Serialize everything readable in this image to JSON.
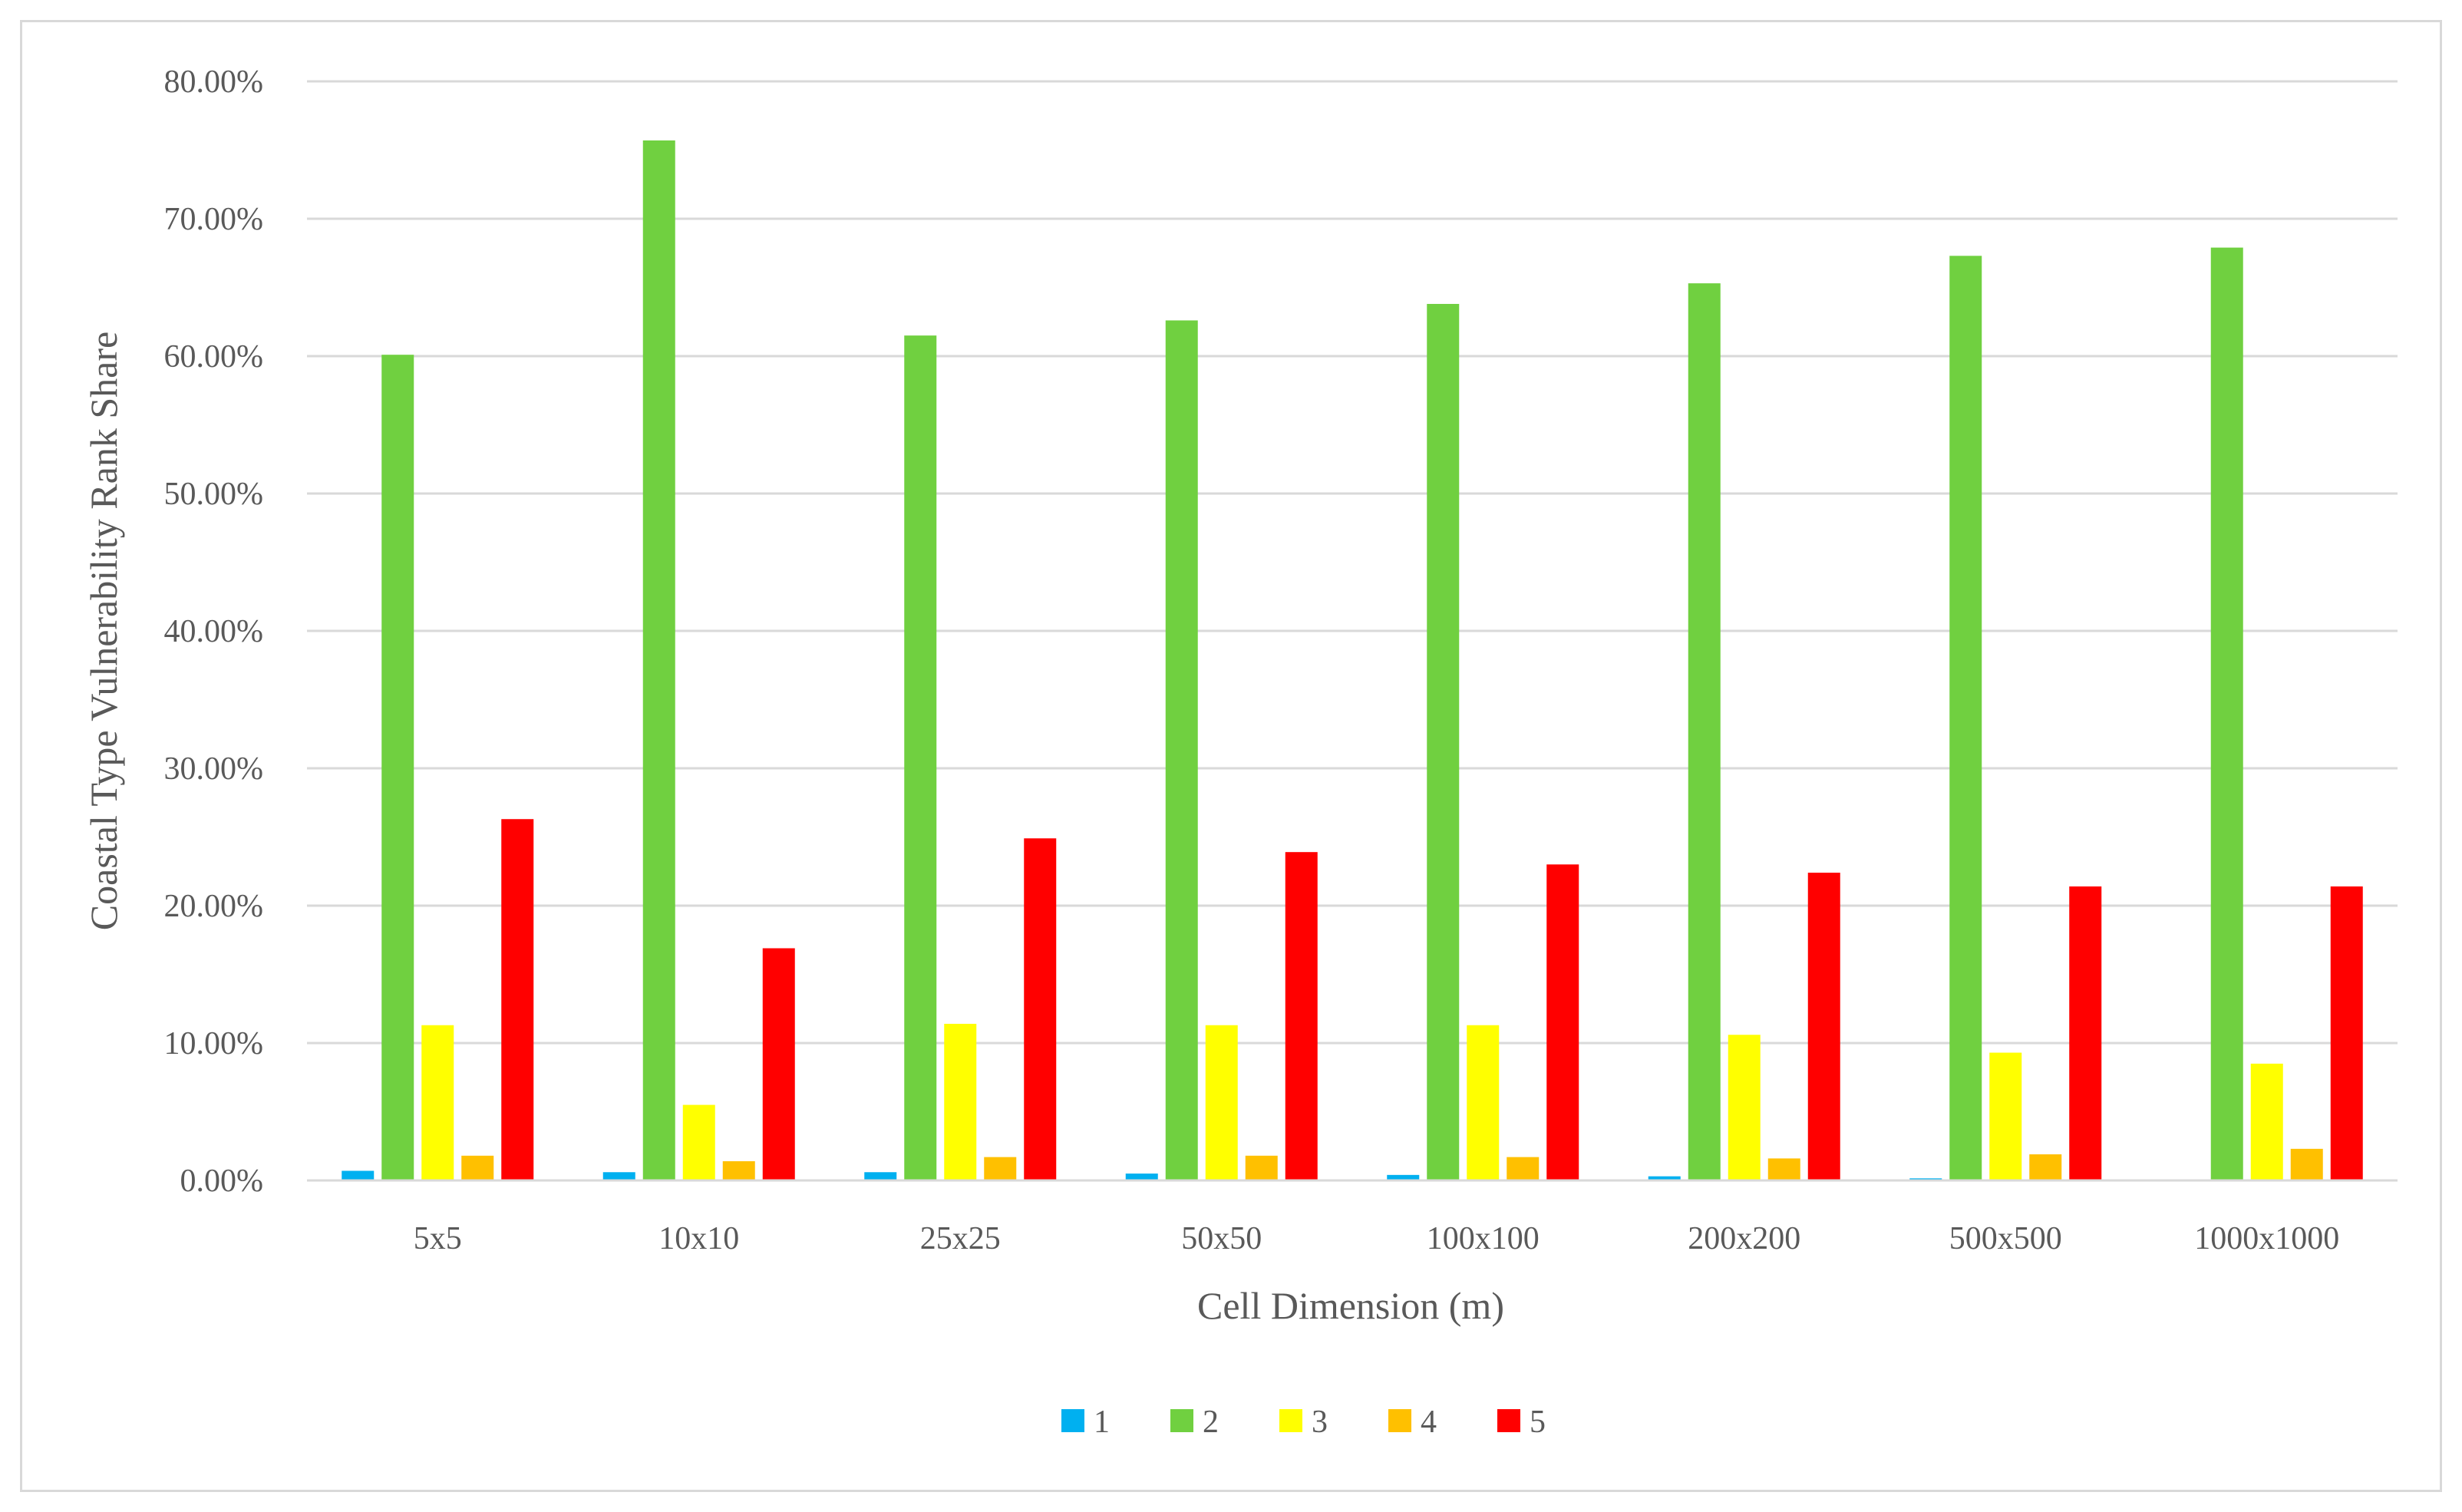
{
  "chart_data": {
    "type": "bar",
    "title": "",
    "xlabel": "Cell Dimension (m)",
    "ylabel": "Coastal Type Vulnerability Rank Share",
    "ylim": [
      0,
      80
    ],
    "y_ticks": [
      "0.00%",
      "10.00%",
      "20.00%",
      "30.00%",
      "40.00%",
      "50.00%",
      "60.00%",
      "70.00%",
      "80.00%"
    ],
    "categories": [
      "5x5",
      "10x10",
      "25x25",
      "50x50",
      "100x100",
      "200x200",
      "500x500",
      "1000x1000"
    ],
    "series": [
      {
        "name": "1",
        "color": "#00b0f0",
        "values": [
          0.7,
          0.6,
          0.6,
          0.5,
          0.4,
          0.3,
          0.15,
          0.0
        ]
      },
      {
        "name": "2",
        "color": "#70d040",
        "values": [
          60.1,
          75.7,
          61.5,
          62.6,
          63.8,
          65.3,
          67.3,
          67.9
        ]
      },
      {
        "name": "3",
        "color": "#ffff00",
        "values": [
          11.3,
          5.5,
          11.4,
          11.3,
          11.3,
          10.6,
          9.3,
          8.5
        ]
      },
      {
        "name": "4",
        "color": "#ffc000",
        "values": [
          1.8,
          1.4,
          1.7,
          1.8,
          1.7,
          1.6,
          1.9,
          2.3
        ]
      },
      {
        "name": "5",
        "color": "#ff0000",
        "values": [
          26.3,
          16.9,
          24.9,
          23.9,
          23.0,
          22.4,
          21.4,
          21.4
        ]
      }
    ],
    "grid": true,
    "legend_position": "bottom"
  }
}
